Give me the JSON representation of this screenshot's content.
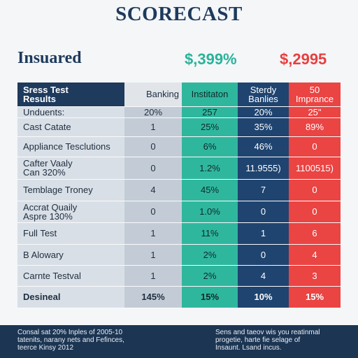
{
  "header": {
    "title": "SCORECAST"
  },
  "summary": {
    "label": "Insuared",
    "teal_value": "$,399%",
    "red_value": "$,2995"
  },
  "table": {
    "columns": [
      "Sress Test\nResults",
      "Banking",
      "Institaton",
      "Sterdy\nBanlies",
      "50\nImprance"
    ],
    "rows": [
      [
        "Unduents:",
        "20%",
        "257",
        "20%",
        "25\""
      ],
      [
        "Cast Catate",
        "1",
        "25%",
        "35%",
        "89%"
      ],
      [
        "Appliance Tesclutions",
        "0",
        "6%",
        "46%",
        "0"
      ],
      [
        "Cafter Vaaly\nCan 320%",
        "0",
        "1.2%",
        "11.9555)",
        "1100515)"
      ],
      [
        "Temblage Troney",
        "4",
        "45%",
        "7",
        "0"
      ],
      [
        "Accrat Quaily\nAspre 130%",
        "0",
        "1.0%",
        "0",
        "0"
      ],
      [
        "Full Test",
        "1",
        "11%",
        "1",
        "6"
      ],
      [
        "B Alowary",
        "1",
        "2%",
        "0",
        "4"
      ],
      [
        "Carnte Testval",
        "1",
        "2%",
        "4",
        "3"
      ],
      [
        "Desineal",
        "145%",
        "15%",
        "10%",
        "15%"
      ]
    ]
  },
  "footer": {
    "left": "Consal sat 20% Inples of 2005-10\ntatenits, narany nets and Fefinces,\nteerce Kinsy 2012",
    "right": "Sens and taeov wis you reatinmal\nprogetie, harte fie selage of\nInsaunt. Lsand incus."
  }
}
